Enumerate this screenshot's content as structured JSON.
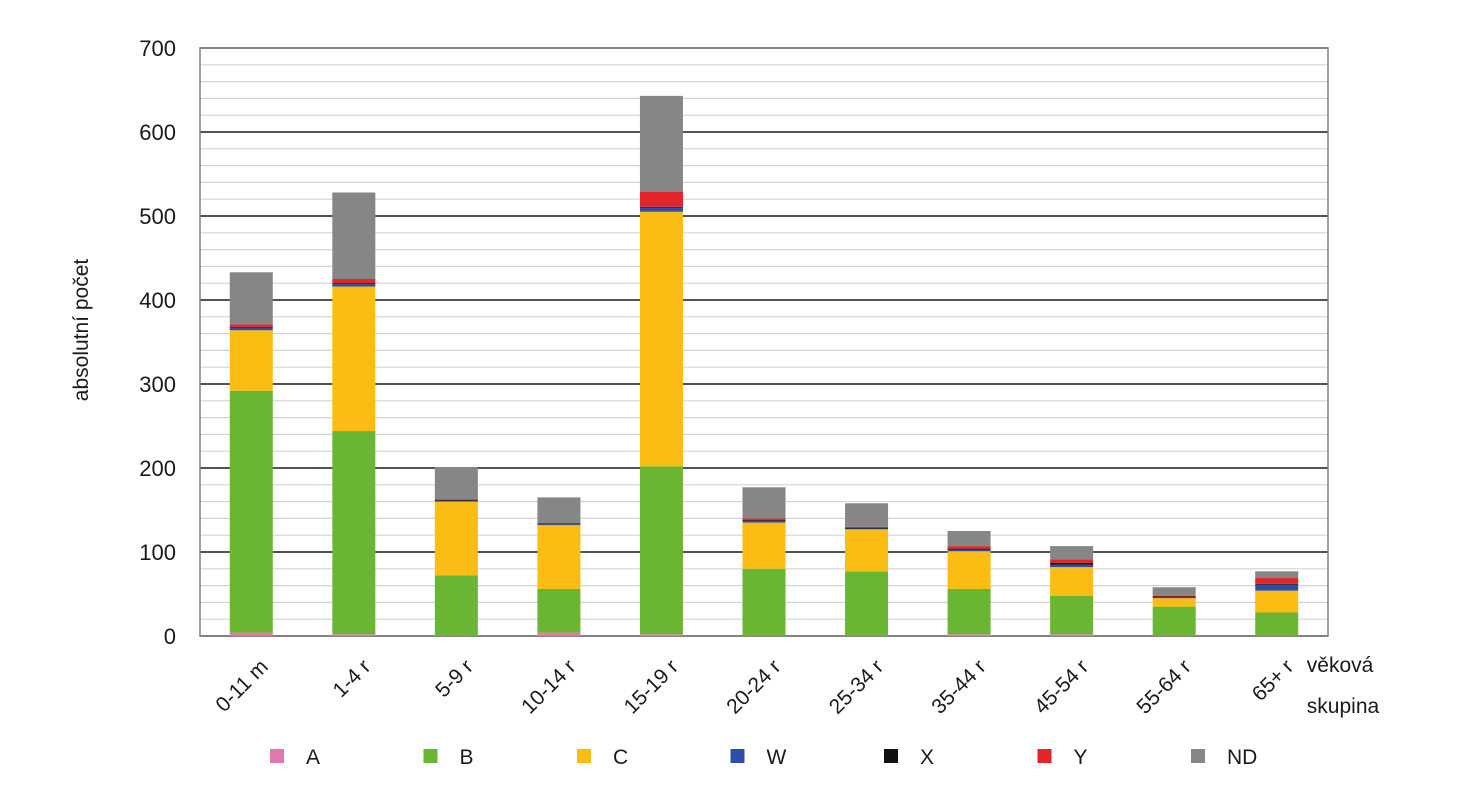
{
  "chart_data": {
    "type": "bar",
    "stacked": true,
    "title": "",
    "xlabel": "věková skupina",
    "xlabel_lines": [
      "věková",
      "skupina"
    ],
    "ylabel": "absolutní počet",
    "ylim": [
      0,
      700
    ],
    "yticks": [
      0,
      100,
      200,
      300,
      400,
      500,
      600,
      700
    ],
    "grid": true,
    "minor_grid_step": 20,
    "legend_position": "bottom",
    "categories": [
      "0-11 m",
      "1-4 r",
      "5-9 r",
      "10-14 r",
      "15-19 r",
      "20-24 r",
      "25-34 r",
      "35-44 r",
      "45-54 r",
      "55-64 r",
      "65+ r"
    ],
    "series": [
      {
        "name": "A",
        "color": "#e377b0",
        "values": [
          4,
          2,
          0,
          4,
          2,
          0,
          0,
          2,
          2,
          0,
          0
        ]
      },
      {
        "name": "B",
        "color": "#6ab633",
        "values": [
          288,
          242,
          72,
          52,
          200,
          80,
          77,
          54,
          46,
          35,
          28
        ]
      },
      {
        "name": "C",
        "color": "#fbbd13",
        "values": [
          72,
          172,
          88,
          76,
          303,
          55,
          50,
          45,
          34,
          10,
          26
        ]
      },
      {
        "name": "W",
        "color": "#2f4ea8",
        "values": [
          3,
          3,
          1,
          1,
          5,
          2,
          1,
          2,
          3,
          1,
          7
        ]
      },
      {
        "name": "X",
        "color": "#111111",
        "values": [
          1,
          1,
          1,
          1,
          1,
          1,
          1,
          1,
          2,
          1,
          1
        ]
      },
      {
        "name": "Y",
        "color": "#e3242b",
        "values": [
          3,
          5,
          1,
          0,
          18,
          2,
          1,
          3,
          4,
          1,
          7
        ]
      },
      {
        "name": "ND",
        "color": "#868686",
        "values": [
          62,
          103,
          38,
          31,
          114,
          37,
          28,
          18,
          16,
          10,
          8
        ]
      }
    ]
  }
}
